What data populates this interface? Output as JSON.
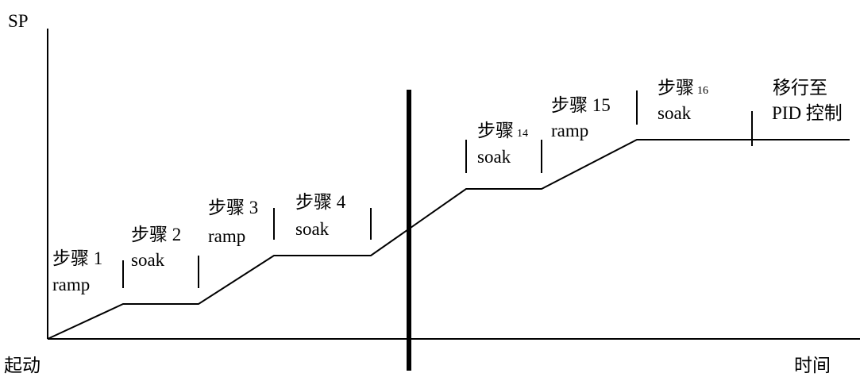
{
  "axes": {
    "y_label": "SP",
    "x_start_label": "起动",
    "x_end_label": "时间"
  },
  "segments": [
    {
      "step": "步骤 1",
      "step_num": "",
      "type": "ramp"
    },
    {
      "step": "步骤 2",
      "step_num": "",
      "type": "soak"
    },
    {
      "step": "步骤 3",
      "step_num": "",
      "type": "ramp"
    },
    {
      "step": "步骤 4",
      "step_num": "",
      "type": "soak"
    },
    {
      "step": "步骤",
      "step_num": "14",
      "type": "soak"
    },
    {
      "step": "步骤 15",
      "step_num": "",
      "type": "ramp"
    },
    {
      "step": "步骤",
      "step_num": "16",
      "type": "soak"
    }
  ],
  "final": {
    "line1": "移行至",
    "line2": "PID 控制"
  }
}
